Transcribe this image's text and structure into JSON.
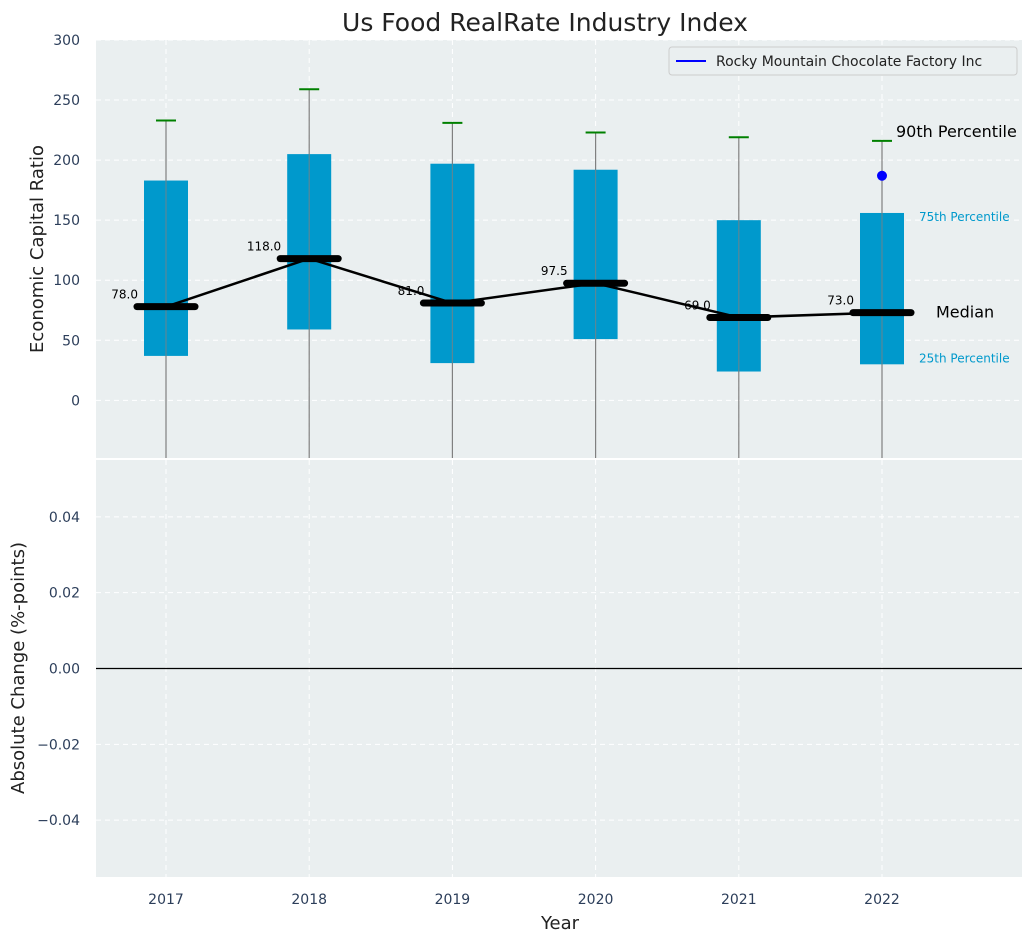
{
  "chart_data": {
    "title": "Us Food RealRate Industry Index",
    "type": "box-percentile",
    "x_label": "Year",
    "years": [
      "2017",
      "2018",
      "2019",
      "2020",
      "2021",
      "2022"
    ],
    "top_panel": {
      "y_label": "Economic Capital Ratio",
      "y_ticks": [
        0,
        50,
        100,
        150,
        200,
        250,
        300
      ],
      "y_range": [
        -48,
        300
      ],
      "grid": true,
      "p25": [
        37,
        59,
        31,
        51,
        24,
        30
      ],
      "p75": [
        183,
        205,
        197,
        192,
        150,
        156
      ],
      "p90": [
        233,
        259,
        231,
        223,
        219,
        216
      ],
      "median": [
        78,
        118,
        81,
        97.5,
        69,
        73
      ],
      "median_labels": [
        "78.0",
        "118.0",
        "81.0",
        "97.5",
        "69.0",
        "73.0"
      ],
      "company_series": {
        "name": "Rocky Mountain Chocolate Factory Inc",
        "color": "#0000ff",
        "points": [
          {
            "year": "2022",
            "value": 187
          }
        ]
      },
      "legend_position": "top-right",
      "annotations": {
        "p90": "90th Percentile",
        "p75": "75th Percentile",
        "median": "Median",
        "p25": "25th Percentile"
      }
    },
    "bottom_panel": {
      "y_label": "Absolute Change (%-points)",
      "y_ticks": [
        -0.04,
        -0.02,
        0.0,
        0.02,
        0.04
      ],
      "y_tick_labels": [
        "−0.04",
        "−0.02",
        "0.00",
        "0.02",
        "0.04"
      ],
      "y_range": [
        -0.055,
        0.055
      ],
      "zero_line": true,
      "grid": true
    },
    "colors": {
      "box": "#0099cc",
      "whisker_cap": "#008000",
      "median_line": "#000000",
      "plot_bg": "#eaeff0",
      "annotation_small": "#0099cc"
    }
  }
}
